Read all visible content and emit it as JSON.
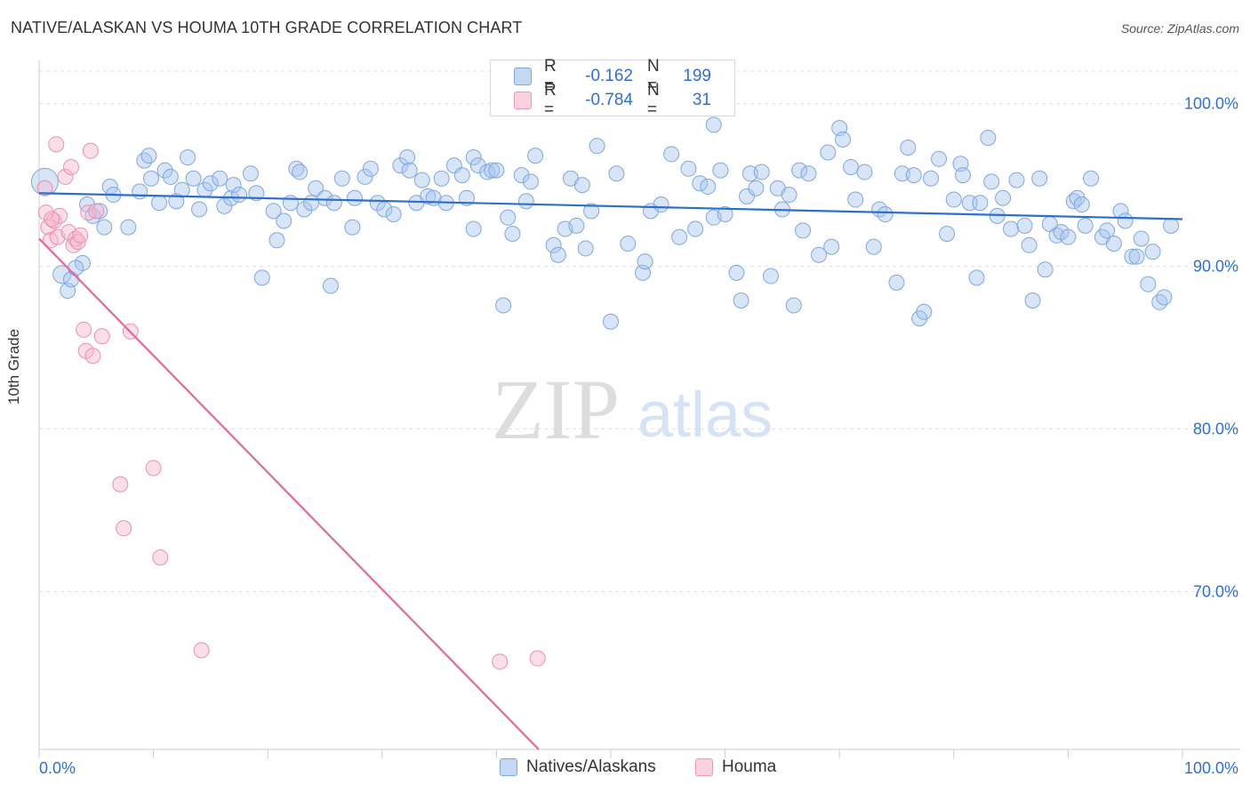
{
  "title": "NATIVE/ALASKAN VS HOUMA 10TH GRADE CORRELATION CHART",
  "source": "Source: ZipAtlas.com",
  "watermark": {
    "zip": "ZIP",
    "atlas": "atlas"
  },
  "legend": {
    "rows": [
      {
        "r_label": "R =",
        "r_value": "-0.162",
        "n_label": "N =",
        "n_value": "199",
        "color": "#a9c6ee"
      },
      {
        "r_label": "R =",
        "r_value": "-0.784",
        "n_label": "N =",
        "n_value": "31",
        "color": "#f6b8cc"
      }
    ]
  },
  "bottom_legend": [
    "Natives/Alaskans",
    "Houma"
  ],
  "chart_data": {
    "type": "scatter",
    "title": "NATIVE/ALASKAN VS HOUMA 10TH GRADE CORRELATION CHART",
    "xlabel": "",
    "ylabel": "10th Grade",
    "xlim": [
      0,
      100
    ],
    "ylim": [
      60.3,
      102
    ],
    "x_tick_labels": [
      "0.0%",
      "100.0%"
    ],
    "y_ticks": [
      100,
      90,
      80,
      70
    ],
    "y_tick_labels": [
      "100.0%",
      "90.0%",
      "80.0%",
      "70.0%"
    ],
    "grid": true,
    "colors": {
      "natives": "#5b8fd9",
      "natives_fill": "#a9c6ee",
      "houma": "#e47aa0",
      "houma_fill": "#f6b8cc",
      "tick_label": "#2f6fd0"
    },
    "series": [
      {
        "name": "Natives/Alaskans",
        "trend": {
          "x": [
            0,
            100
          ],
          "y": [
            94.5,
            92.9
          ]
        },
        "points": [
          [
            0.5,
            95.2
          ],
          [
            2,
            89.5
          ],
          [
            2.5,
            88.5
          ],
          [
            2.8,
            89.2
          ],
          [
            3.8,
            90.2
          ],
          [
            4.2,
            93.8
          ],
          [
            4.7,
            93.1
          ],
          [
            5.7,
            92.4
          ],
          [
            6.2,
            94.9
          ],
          [
            6.5,
            94.4
          ],
          [
            7.8,
            92.4
          ],
          [
            8.8,
            94.6
          ],
          [
            9.2,
            96.5
          ],
          [
            9.6,
            96.8
          ],
          [
            9.8,
            95.4
          ],
          [
            10.5,
            93.9
          ],
          [
            11,
            95.9
          ],
          [
            11.5,
            95.5
          ],
          [
            12,
            94
          ],
          [
            12.5,
            94.7
          ],
          [
            13,
            96.7
          ],
          [
            13.5,
            95.4
          ],
          [
            14,
            93.5
          ],
          [
            14.5,
            94.7
          ],
          [
            15,
            95.1
          ],
          [
            15.8,
            95.4
          ],
          [
            16.2,
            93.7
          ],
          [
            16.8,
            94.2
          ],
          [
            17,
            95
          ],
          [
            17.5,
            94.4
          ],
          [
            18.5,
            95.7
          ],
          [
            19,
            94.5
          ],
          [
            19.5,
            89.3
          ],
          [
            20.5,
            93.4
          ],
          [
            20.8,
            91.6
          ],
          [
            21.4,
            92.8
          ],
          [
            22,
            93.9
          ],
          [
            22.5,
            96
          ],
          [
            22.8,
            95.8
          ],
          [
            23.2,
            93.5
          ],
          [
            23.8,
            93.9
          ],
          [
            24.2,
            94.8
          ],
          [
            25,
            94.2
          ],
          [
            25.5,
            88.8
          ],
          [
            25.8,
            93.9
          ],
          [
            26.5,
            95.4
          ],
          [
            27.4,
            92.4
          ],
          [
            27.6,
            94.2
          ],
          [
            28.5,
            95.5
          ],
          [
            29,
            96
          ],
          [
            29.6,
            93.9
          ],
          [
            30.2,
            93.5
          ],
          [
            31,
            93.2
          ],
          [
            31.6,
            96.2
          ],
          [
            32.2,
            96.7
          ],
          [
            32.4,
            95.9
          ],
          [
            33,
            93.9
          ],
          [
            33.5,
            95.3
          ],
          [
            34,
            94.3
          ],
          [
            34.5,
            94.2
          ],
          [
            35.2,
            95.4
          ],
          [
            35.6,
            93.9
          ],
          [
            36.3,
            96.2
          ],
          [
            37,
            95.6
          ],
          [
            37.4,
            94.2
          ],
          [
            38,
            96.7
          ],
          [
            38.4,
            96.2
          ],
          [
            39.2,
            95.8
          ],
          [
            39.6,
            95.9
          ],
          [
            40,
            95.9
          ],
          [
            40.6,
            87.6
          ],
          [
            41,
            93
          ],
          [
            41.4,
            92
          ],
          [
            42.2,
            95.6
          ],
          [
            42.6,
            94
          ],
          [
            43,
            95.2
          ],
          [
            43.4,
            96.8
          ],
          [
            45,
            91.3
          ],
          [
            45.4,
            90.7
          ],
          [
            46,
            92.3
          ],
          [
            46.5,
            95.4
          ],
          [
            47,
            92.5
          ],
          [
            47.5,
            95
          ],
          [
            47.8,
            91.1
          ],
          [
            48.3,
            93.4
          ],
          [
            48.8,
            97.4
          ],
          [
            50,
            86.6
          ],
          [
            50.5,
            95.7
          ],
          [
            51.5,
            91.4
          ],
          [
            52.8,
            89.6
          ],
          [
            53,
            90.3
          ],
          [
            53.5,
            93.4
          ],
          [
            54.4,
            93.8
          ],
          [
            55.3,
            96.9
          ],
          [
            56,
            91.8
          ],
          [
            56.8,
            96
          ],
          [
            57.4,
            92.3
          ],
          [
            57.8,
            95.1
          ],
          [
            58.5,
            94.9
          ],
          [
            59,
            93
          ],
          [
            59.6,
            95.9
          ],
          [
            60,
            93.2
          ],
          [
            61,
            89.6
          ],
          [
            61.4,
            87.9
          ],
          [
            61.9,
            94.3
          ],
          [
            62.2,
            95.7
          ],
          [
            62.7,
            94.8
          ],
          [
            63.2,
            95.8
          ],
          [
            64,
            89.4
          ],
          [
            64.6,
            94.8
          ],
          [
            65,
            93.5
          ],
          [
            65.6,
            94.4
          ],
          [
            66,
            87.6
          ],
          [
            66.5,
            95.9
          ],
          [
            66.8,
            92.2
          ],
          [
            67.3,
            95.7
          ],
          [
            68.2,
            90.7
          ],
          [
            69,
            97
          ],
          [
            69.3,
            91.2
          ],
          [
            70,
            98.5
          ],
          [
            70.3,
            97.8
          ],
          [
            71,
            96.1
          ],
          [
            71.4,
            94.1
          ],
          [
            72.2,
            95.8
          ],
          [
            73,
            91.2
          ],
          [
            73.5,
            93.5
          ],
          [
            74,
            93.2
          ],
          [
            75,
            89
          ],
          [
            75.5,
            95.7
          ],
          [
            76,
            97.3
          ],
          [
            76.5,
            95.6
          ],
          [
            77,
            86.8
          ],
          [
            77.4,
            87.2
          ],
          [
            78,
            95.4
          ],
          [
            78.7,
            96.6
          ],
          [
            79.4,
            92
          ],
          [
            80,
            94.1
          ],
          [
            80.6,
            96.3
          ],
          [
            80.8,
            95.6
          ],
          [
            81.4,
            93.9
          ],
          [
            82,
            89.3
          ],
          [
            82.3,
            93.9
          ],
          [
            83,
            97.9
          ],
          [
            83.3,
            95.2
          ],
          [
            83.8,
            93.1
          ],
          [
            84.3,
            94.2
          ],
          [
            85,
            92.3
          ],
          [
            85.5,
            95.3
          ],
          [
            86.2,
            92.5
          ],
          [
            86.6,
            91.3
          ],
          [
            86.9,
            87.9
          ],
          [
            87.5,
            95.4
          ],
          [
            88,
            89.8
          ],
          [
            88.4,
            92.6
          ],
          [
            89,
            91.9
          ],
          [
            89.4,
            92.1
          ],
          [
            90,
            91.8
          ],
          [
            90.5,
            94
          ],
          [
            90.8,
            94.2
          ],
          [
            91.2,
            93.8
          ],
          [
            91.5,
            92.5
          ],
          [
            92,
            95.4
          ],
          [
            93,
            91.8
          ],
          [
            93.4,
            92.2
          ],
          [
            94,
            91.4
          ],
          [
            94.6,
            93.4
          ],
          [
            95,
            92.8
          ],
          [
            95.6,
            90.6
          ],
          [
            96,
            90.6
          ],
          [
            96.4,
            91.7
          ],
          [
            97,
            88.9
          ],
          [
            97.4,
            90.9
          ],
          [
            98,
            87.8
          ],
          [
            98.4,
            88.1
          ],
          [
            99,
            92.5
          ],
          [
            3.2,
            89.9
          ],
          [
            59,
            98.7
          ],
          [
            38,
            92.3
          ],
          [
            5.3,
            93.4
          ]
        ]
      },
      {
        "name": "Houma",
        "trend": {
          "x": [
            0,
            43.7
          ],
          "y": [
            91.7,
            60.3
          ]
        },
        "points": [
          [
            0.5,
            94.8
          ],
          [
            0.6,
            93.3
          ],
          [
            0.8,
            92.4
          ],
          [
            1,
            91.6
          ],
          [
            1.3,
            92.8
          ],
          [
            1.5,
            97.5
          ],
          [
            1.6,
            91.8
          ],
          [
            1.8,
            93.1
          ],
          [
            2.3,
            95.5
          ],
          [
            2.6,
            92.1
          ],
          [
            2.8,
            96.1
          ],
          [
            3,
            91.3
          ],
          [
            3.2,
            91.7
          ],
          [
            3.4,
            91.5
          ],
          [
            3.6,
            91.9
          ],
          [
            3.9,
            86.1
          ],
          [
            4.1,
            84.8
          ],
          [
            4.3,
            93.3
          ],
          [
            4.5,
            97.1
          ],
          [
            4.7,
            84.5
          ],
          [
            5,
            93.4
          ],
          [
            5.5,
            85.7
          ],
          [
            7.1,
            76.6
          ],
          [
            7.4,
            73.9
          ],
          [
            8,
            86
          ],
          [
            10,
            77.6
          ],
          [
            10.6,
            72.1
          ],
          [
            14.2,
            66.4
          ],
          [
            40.3,
            65.7
          ],
          [
            43.6,
            65.9
          ],
          [
            1.1,
            92.9
          ]
        ]
      }
    ]
  }
}
